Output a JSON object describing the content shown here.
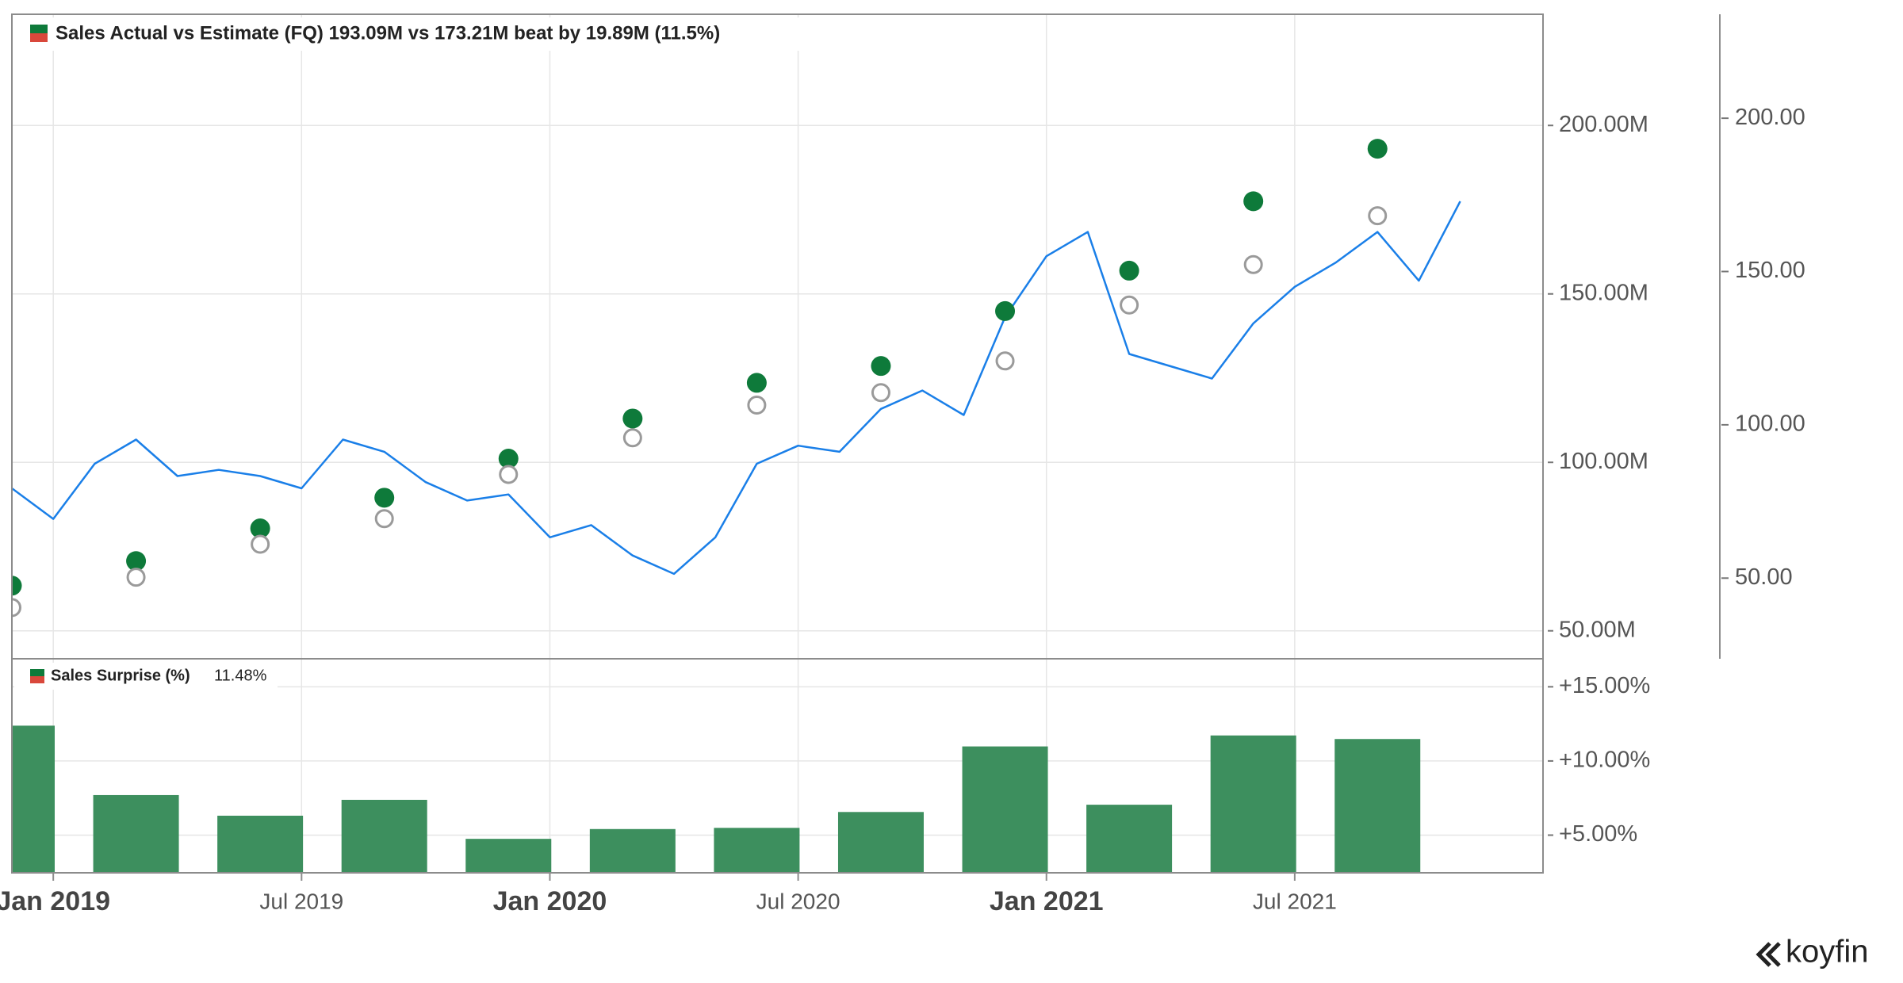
{
  "chart_data": [
    {
      "type": "line",
      "legend": "Sales Actual vs Estimate (FQ) 193.09M vs 173.21M beat by 19.89M (11.5%)",
      "xlim": [
        "2018-12",
        "2022-01"
      ],
      "ylim": [
        41.7,
        233
      ],
      "yticks": [
        {
          "value": 50,
          "label": "50.00M"
        },
        {
          "value": 100,
          "label": "100.00M"
        },
        {
          "value": 150,
          "label": "150.00M"
        },
        {
          "value": 200,
          "label": "200.00M"
        }
      ],
      "y2lim": [
        23.7,
        233.9
      ],
      "y2ticks": [
        {
          "value": 50,
          "label": "50.00"
        },
        {
          "value": 100,
          "label": "100.00"
        },
        {
          "value": 150,
          "label": "150.00"
        },
        {
          "value": 200,
          "label": "200.00"
        }
      ],
      "grid": true,
      "series": [
        {
          "type": "line",
          "axis": "y2",
          "color": "#1a7fe8",
          "x": [
            "2018-12",
            "2019-01",
            "2019-02",
            "2019-03",
            "2019-04",
            "2019-05",
            "2019-06",
            "2019-07",
            "2019-08",
            "2019-09",
            "2019-10",
            "2019-11",
            "2019-12",
            "2020-01",
            "2020-02",
            "2020-03",
            "2020-04",
            "2020-05",
            "2020-06",
            "2020-07",
            "2020-08",
            "2020-09",
            "2020-10",
            "2020-11",
            "2020-12",
            "2021-01",
            "2021-02",
            "2021-03",
            "2021-04",
            "2021-05",
            "2021-06",
            "2021-07",
            "2021-08",
            "2021-09",
            "2021-10",
            "2021-11"
          ],
          "values": [
            79.3,
            69.3,
            87.3,
            95.2,
            83.3,
            85.3,
            83.3,
            79.3,
            95.2,
            91.2,
            81.3,
            75.3,
            77.3,
            63.3,
            67.3,
            57.4,
            51.4,
            63.3,
            87.3,
            93.2,
            91.2,
            105.2,
            111.2,
            103.2,
            135.1,
            155.0,
            162.9,
            123.1,
            119.1,
            115.1,
            133.1,
            145.0,
            153.0,
            162.9,
            147.0,
            172.9
          ]
        },
        {
          "type": "scatter",
          "marker": "filled",
          "color": "#0e7a3a",
          "x": [
            "2018-12",
            "2019-03",
            "2019-06",
            "2019-09",
            "2019-12",
            "2020-03",
            "2020-06",
            "2020-09",
            "2020-12",
            "2021-03",
            "2021-06",
            "2021-09"
          ],
          "values": [
            63.4,
            70.7,
            80.4,
            89.5,
            101.1,
            113.0,
            123.6,
            128.6,
            144.9,
            156.9,
            177.5,
            193.09
          ]
        },
        {
          "type": "scatter",
          "marker": "open",
          "color": "#9a9a9a",
          "x": [
            "2018-12",
            "2019-03",
            "2019-06",
            "2019-09",
            "2019-12",
            "2020-03",
            "2020-06",
            "2020-09",
            "2020-12",
            "2021-03",
            "2021-06",
            "2021-09"
          ],
          "values": [
            56.9,
            65.9,
            75.7,
            83.3,
            96.4,
            107.3,
            117.0,
            120.7,
            130.1,
            146.7,
            158.7,
            173.21
          ]
        }
      ]
    },
    {
      "type": "bar",
      "name": "Sales Surprise (%)",
      "legend_value": "11.48%",
      "color": "#3d8f5e",
      "xlim": [
        "2018-12",
        "2022-01"
      ],
      "x": [
        "2018-12",
        "2019-03",
        "2019-06",
        "2019-09",
        "2019-12",
        "2020-03",
        "2020-06",
        "2020-09",
        "2020-12",
        "2021-03",
        "2021-06",
        "2021-09"
      ],
      "values": [
        12.38,
        7.7,
        6.31,
        7.38,
        4.75,
        5.41,
        5.49,
        6.56,
        10.98,
        7.05,
        11.72,
        11.48
      ],
      "ylim": [
        2.46,
        16.89
      ],
      "yticks": [
        {
          "value": 5,
          "label": "+5.00%"
        },
        {
          "value": 10,
          "label": "+10.00%"
        },
        {
          "value": 15,
          "label": "+15.00%"
        }
      ],
      "xticks": [
        {
          "value": "2019-01",
          "label": "Jan 2019"
        },
        {
          "value": "2019-07",
          "label": "Jul 2019"
        },
        {
          "value": "2020-01",
          "label": "Jan 2020"
        },
        {
          "value": "2020-07",
          "label": "Jul 2020"
        },
        {
          "value": "2021-01",
          "label": "Jan 2021"
        },
        {
          "value": "2021-07",
          "label": "Jul 2021"
        }
      ],
      "grid": true
    }
  ],
  "brand": "koyfin"
}
